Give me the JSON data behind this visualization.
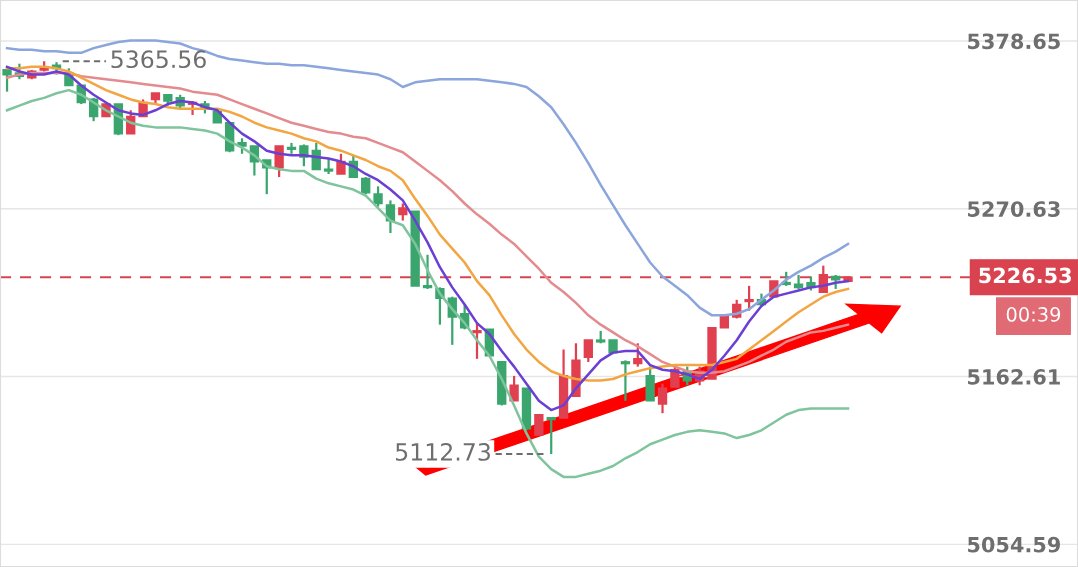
{
  "chart_data": {
    "type": "candlestick",
    "categories": [
      null,
      null,
      null,
      null,
      null,
      null,
      null,
      null,
      null,
      null,
      null,
      null,
      null,
      null,
      null,
      null,
      null,
      null,
      null,
      null,
      null,
      null,
      null,
      null,
      null,
      null,
      null,
      null,
      null,
      null,
      null,
      null,
      null,
      null,
      null,
      null,
      null,
      null,
      null,
      null,
      null,
      null,
      null,
      null,
      null,
      null,
      null,
      null,
      null,
      null,
      null,
      null,
      null,
      null,
      null,
      null,
      null,
      null,
      null,
      null,
      null,
      null,
      null,
      null,
      null,
      null,
      null,
      null,
      null
    ],
    "ohlc": [
      [
        5360,
        5362,
        5346,
        5357
      ],
      [
        5358,
        5364,
        5354,
        5356
      ],
      [
        5355,
        5360,
        5354,
        5359
      ],
      [
        5360,
        5365.56,
        5359,
        5362
      ],
      [
        5363,
        5365,
        5357,
        5361
      ],
      [
        5358,
        5361,
        5350,
        5350
      ],
      [
        5350,
        5350,
        5338,
        5339
      ],
      [
        5341,
        5342,
        5327,
        5330
      ],
      [
        5330,
        5338,
        5330,
        5338
      ],
      [
        5338,
        5338,
        5318,
        5319
      ],
      [
        5319,
        5334,
        5319,
        5330
      ],
      [
        5330,
        5341,
        5330,
        5339
      ],
      [
        5341,
        5345,
        5338,
        5345
      ],
      [
        5344,
        5344,
        5337,
        5340
      ],
      [
        5342,
        5344,
        5335,
        5337
      ],
      [
        5338,
        5340,
        5331,
        5339
      ],
      [
        5338,
        5340,
        5332,
        5336
      ],
      [
        5333,
        5334,
        5326,
        5326
      ],
      [
        5326,
        5326,
        5307,
        5308
      ],
      [
        5313,
        5316,
        5306,
        5311
      ],
      [
        5311,
        5311,
        5292,
        5301
      ],
      [
        5302,
        5302,
        5280,
        5297
      ],
      [
        5297,
        5311,
        5291,
        5311
      ],
      [
        5310,
        5313,
        5306,
        5309
      ],
      [
        5311,
        5312,
        5298,
        5304
      ],
      [
        5308,
        5313,
        5296,
        5296
      ],
      [
        5296,
        5303,
        5293,
        5295
      ],
      [
        5293,
        5306,
        5293,
        5301
      ],
      [
        5301,
        5305,
        5291,
        5291
      ],
      [
        5290,
        5291,
        5280,
        5281
      ],
      [
        5280,
        5285,
        5272,
        5274
      ],
      [
        5273,
        5276,
        5255,
        5263
      ],
      [
        5267,
        5274,
        5263,
        5271
      ],
      [
        5269,
        5269,
        5221,
        5221
      ],
      [
        5221,
        5241,
        5219,
        5220
      ],
      [
        5219,
        5220,
        5196,
        5213
      ],
      [
        5213,
        5214,
        5183,
        5201
      ],
      [
        5203,
        5209,
        5193,
        5194
      ],
      [
        5191,
        5197,
        5174,
        5192
      ],
      [
        5193,
        5193,
        5176,
        5176
      ],
      [
        5172,
        5172,
        5144,
        5145
      ],
      [
        5147,
        5163,
        5147,
        5157
      ],
      [
        5155,
        5155,
        5128,
        5129
      ],
      [
        5125,
        5138,
        5125,
        5138
      ],
      [
        5136,
        5136,
        5112.73,
        5135
      ],
      [
        5136,
        5180,
        5136,
        5163
      ],
      [
        5150,
        5184,
        5150,
        5173
      ],
      [
        5175,
        5186,
        5172,
        5186
      ],
      [
        5186,
        5192,
        5184,
        5185
      ],
      [
        5186,
        5186,
        5177,
        5178
      ],
      [
        5172,
        5173,
        5147,
        5171
      ],
      [
        5171,
        5184,
        5169,
        5174
      ],
      [
        5163,
        5169,
        5147,
        5147
      ],
      [
        5145,
        5158,
        5139,
        5155
      ],
      [
        5156,
        5169,
        5156,
        5167
      ],
      [
        5166,
        5169,
        5157,
        5160
      ],
      [
        5160,
        5169,
        5157,
        5166
      ],
      [
        5161,
        5194,
        5161,
        5194
      ],
      [
        5194,
        5202,
        5194,
        5201
      ],
      [
        5201,
        5212,
        5200,
        5209
      ],
      [
        5211,
        5221,
        5205,
        5212
      ],
      [
        5212,
        5216,
        5208,
        5209
      ],
      [
        5214,
        5224,
        5214,
        5224
      ],
      [
        5223,
        5230,
        5221,
        5222
      ],
      [
        5222,
        5228,
        5219,
        5220
      ],
      [
        5223,
        5227,
        5218,
        5220
      ],
      [
        5217,
        5234,
        5217,
        5228
      ],
      [
        5227,
        5228,
        5219,
        5225
      ],
      [
        5224,
        5227,
        5224,
        5226.53
      ]
    ],
    "colors": [
      "#3ba56e",
      "#3ba56e",
      "#e0404f",
      "#e0404f",
      "#3ba56e",
      "#3ba56e",
      "#3ba56e",
      "#3ba56e",
      "#e0404f",
      "#3ba56e",
      "#e0404f",
      "#e0404f",
      "#e0404f",
      "#3ba56e",
      "#3ba56e",
      "#e0404f",
      "#3ba56e",
      "#3ba56e",
      "#3ba56e",
      "#3ba56e",
      "#3ba56e",
      "#3ba56e",
      "#e0404f",
      "#3ba56e",
      "#3ba56e",
      "#3ba56e",
      "#3ba56e",
      "#e0404f",
      "#3ba56e",
      "#3ba56e",
      "#3ba56e",
      "#3ba56e",
      "#e0404f",
      "#3ba56e",
      "#3ba56e",
      "#3ba56e",
      "#3ba56e",
      "#3ba56e",
      "#e0404f",
      "#3ba56e",
      "#3ba56e",
      "#e0404f",
      "#3ba56e",
      "#e0404f",
      "#3ba56e",
      "#e0404f",
      "#e0404f",
      "#e0404f",
      "#3ba56e",
      "#3ba56e",
      "#3ba56e",
      "#e0404f",
      "#3ba56e",
      "#e0404f",
      "#e0404f",
      "#3ba56e",
      "#e0404f",
      "#e0404f",
      "#e0404f",
      "#e0404f",
      "#e0404f",
      "#3ba56e",
      "#e0404f",
      "#3ba56e",
      "#3ba56e",
      "#3ba56e",
      "#e0404f",
      "#3ba56e",
      "#e0404f"
    ],
    "series": [
      {
        "type": "line",
        "color": "#8ba5dd",
        "values": [
          5374,
          5373,
          5373,
          5372,
          5372,
          5371,
          5371,
          5374,
          5376,
          5378,
          5379,
          5379,
          5379,
          5378,
          5377,
          5374,
          5372,
          5369,
          5367,
          5366,
          5365,
          5364,
          5364,
          5363,
          5363,
          5362,
          5361,
          5360,
          5359,
          5358,
          5357,
          5354,
          5349,
          5352,
          5353,
          5354,
          5354,
          5354,
          5354,
          5353,
          5352,
          5351,
          5349,
          5343,
          5336,
          5325,
          5313,
          5300,
          5286,
          5273,
          5260,
          5248,
          5236,
          5227,
          5221,
          5215,
          5207,
          5202,
          5202,
          5203,
          5206,
          5212,
          5218,
          5225,
          5230,
          5234,
          5239,
          5243,
          5248
        ]
      },
      {
        "type": "line",
        "color": "#7fc49c",
        "values": [
          5334,
          5337,
          5340,
          5342,
          5345,
          5347,
          5344,
          5339,
          5334,
          5330,
          5326,
          5324,
          5323,
          5323,
          5323,
          5322,
          5321,
          5319,
          5314,
          5310,
          5305,
          5298,
          5296,
          5295,
          5295,
          5290,
          5287,
          5285,
          5283,
          5279,
          5271,
          5263,
          5260,
          5248,
          5231,
          5216,
          5206,
          5197,
          5186,
          5176,
          5161,
          5144,
          5126,
          5111,
          5103,
          5098,
          5098,
          5100,
          5102,
          5105,
          5110,
          5114,
          5119,
          5122,
          5125,
          5127,
          5128,
          5127,
          5126,
          5123,
          5125,
          5128,
          5133,
          5138,
          5141,
          5142,
          5142,
          5142,
          5142
        ]
      },
      {
        "type": "line",
        "color": "#e38b8e",
        "values": [
          5355,
          5357,
          5358,
          5358,
          5358,
          5358,
          5356,
          5355,
          5354,
          5353,
          5352,
          5351,
          5350,
          5349,
          5348,
          5346,
          5345,
          5344,
          5341,
          5338,
          5335,
          5332,
          5329,
          5326,
          5324,
          5322,
          5320,
          5319,
          5317,
          5316,
          5313,
          5310,
          5307,
          5301,
          5295,
          5289,
          5282,
          5274,
          5267,
          5261,
          5254,
          5248,
          5240,
          5232,
          5223,
          5217,
          5210,
          5202,
          5196,
          5191,
          5186,
          5182,
          5177,
          5172,
          5169,
          5166,
          5165,
          5165,
          5166,
          5169,
          5172,
          5176,
          5180,
          5185,
          5188,
          5191,
          5192,
          5194,
          5196
        ]
      },
      {
        "type": "line",
        "color": "#f2a541",
        "values": [
          5361,
          5361,
          5362,
          5362,
          5361,
          5359,
          5355,
          5351,
          5347,
          5344,
          5341,
          5339,
          5338,
          5336,
          5335,
          5335,
          5335,
          5335,
          5333,
          5330,
          5326,
          5323,
          5321,
          5319,
          5316,
          5314,
          5310,
          5308,
          5305,
          5302,
          5298,
          5295,
          5289,
          5277,
          5266,
          5254,
          5245,
          5236,
          5224,
          5215,
          5202,
          5190,
          5180,
          5172,
          5166,
          5163,
          5161,
          5160,
          5160,
          5161,
          5164,
          5166,
          5168,
          5169,
          5170,
          5170,
          5170,
          5170,
          5172,
          5174,
          5180,
          5186,
          5192,
          5198,
          5204,
          5209,
          5214,
          5217,
          5219
        ]
      },
      {
        "type": "line",
        "color": "#6b3fd4",
        "values": [
          5362,
          5359,
          5357,
          5357,
          5359,
          5357,
          5350,
          5344,
          5339,
          5334,
          5332,
          5331,
          5334,
          5338,
          5340,
          5339,
          5336,
          5334,
          5326,
          5319,
          5314,
          5308,
          5306,
          5305,
          5305,
          5304,
          5303,
          5301,
          5298,
          5293,
          5289,
          5283,
          5276,
          5263,
          5249,
          5233,
          5220,
          5209,
          5197,
          5190,
          5179,
          5169,
          5158,
          5147,
          5141,
          5144,
          5155,
          5164,
          5173,
          5178,
          5179,
          5179,
          5170,
          5167,
          5166,
          5164,
          5161,
          5167,
          5176,
          5186,
          5198,
          5208,
          5214,
          5216,
          5218,
          5220,
          5221,
          5223,
          5224
        ]
      }
    ],
    "ylim": [
      5040,
      5405
    ],
    "yticks": [
      5378.65,
      5270.63,
      5162.61,
      5054.59
    ],
    "tick_labels": "y",
    "grid": "y",
    "ref_lines": [
      {
        "axis": "y",
        "value": 5226.53,
        "label": "5226.53",
        "color": "#d9434f",
        "line_style": "dashed"
      }
    ],
    "annotations": [
      "5365.56",
      "5112.73",
      "00:39"
    ]
  }
}
